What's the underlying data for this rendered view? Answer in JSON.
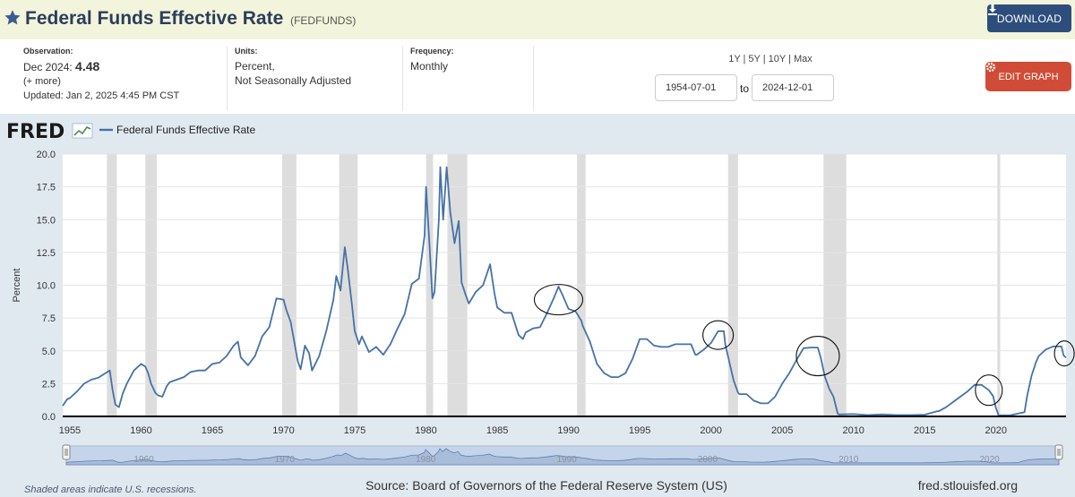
{
  "header": {
    "title": "Federal Funds Effective Rate",
    "series_code": "(FEDFUNDS)",
    "download_label": "DOWNLOAD"
  },
  "meta": {
    "observation_label": "Observation:",
    "observation_period": "Dec 2024:",
    "observation_value": "4.48",
    "more_link": "(+ more)",
    "updated": "Updated: Jan 2, 2025 4:45 PM CST",
    "units_label": "Units:",
    "units_line1": "Percent,",
    "units_line2": "Not Seasonally Adjusted",
    "frequency_label": "Frequency:",
    "frequency_value": "Monthly"
  },
  "controls": {
    "range_links": "1Y | 5Y | 10Y | Max",
    "start_date": "1954-07-01",
    "to_label": "to",
    "end_date": "2024-12-01",
    "edit_label": "EDIT GRAPH"
  },
  "footer": {
    "note": "Shaded areas indicate U.S. recessions.",
    "source": "Source: Board of Governors of the Federal Reserve System (US)",
    "site": "fred.stlouisfed.org"
  },
  "colors": {
    "line": "#4572a7",
    "recession": "#dddddd",
    "plot_bg": "#ffffff",
    "chart_bg": "#e1e9f0"
  },
  "chart_data": {
    "type": "line",
    "logo": "FRED",
    "series_name": "Federal Funds Effective Rate",
    "ylabel": "Percent",
    "xlim": [
      1954.5,
      2024.92
    ],
    "ylim": [
      0,
      20
    ],
    "yticks": [
      0,
      2.5,
      5,
      7.5,
      10,
      12.5,
      15,
      17.5,
      20
    ],
    "ytick_labels": [
      "0.0",
      "2.5",
      "5.0",
      "7.5",
      "10.0",
      "12.5",
      "15.0",
      "17.5",
      "20.0"
    ],
    "xticks": [
      1955,
      1960,
      1965,
      1970,
      1975,
      1980,
      1985,
      1990,
      1995,
      2000,
      2005,
      2010,
      2015,
      2020
    ],
    "navigator_labels": [
      1960,
      1970,
      1980,
      1990,
      2000,
      2010,
      2020
    ],
    "grid": "horizontal",
    "legend": "top-left",
    "recessions": [
      [
        1957.6,
        1958.3
      ],
      [
        1960.3,
        1961.1
      ],
      [
        1969.9,
        1970.9
      ],
      [
        1973.9,
        1975.2
      ],
      [
        1980.0,
        1980.5
      ],
      [
        1981.5,
        1982.9
      ],
      [
        1990.6,
        1991.2
      ],
      [
        2001.2,
        2001.9
      ],
      [
        2007.9,
        2009.5
      ],
      [
        2020.1,
        2020.3
      ]
    ],
    "x": [
      1954.5,
      1954.8,
      1955.0,
      1955.5,
      1956.0,
      1956.5,
      1957.0,
      1957.5,
      1957.8,
      1958.0,
      1958.2,
      1958.45,
      1958.7,
      1959.0,
      1959.5,
      1960.0,
      1960.3,
      1960.5,
      1960.7,
      1961.0,
      1961.2,
      1961.5,
      1961.8,
      1962.0,
      1962.5,
      1963.0,
      1963.5,
      1964.0,
      1964.5,
      1965.0,
      1965.5,
      1966.0,
      1966.5,
      1966.8,
      1967.0,
      1967.5,
      1968.0,
      1968.5,
      1969.0,
      1969.5,
      1970.0,
      1970.2,
      1970.5,
      1971.0,
      1971.2,
      1971.5,
      1971.8,
      1972.0,
      1972.5,
      1973.0,
      1973.5,
      1973.7,
      1974.0,
      1974.3,
      1974.5,
      1974.8,
      1975.0,
      1975.3,
      1975.5,
      1976.0,
      1976.5,
      1977.0,
      1977.5,
      1978.0,
      1978.5,
      1979.0,
      1979.5,
      1979.9,
      1980.0,
      1980.25,
      1980.45,
      1980.6,
      1980.9,
      1981.0,
      1981.2,
      1981.45,
      1981.7,
      1982.0,
      1982.3,
      1982.5,
      1982.8,
      1983.0,
      1983.5,
      1984.0,
      1984.5,
      1984.8,
      1985.0,
      1985.5,
      1986.0,
      1986.5,
      1986.8,
      1987.0,
      1987.5,
      1988.0,
      1988.5,
      1989.0,
      1989.3,
      1989.6,
      1990.0,
      1990.5,
      1990.9,
      1991.0,
      1991.5,
      1992.0,
      1992.5,
      1993.0,
      1993.5,
      1994.0,
      1994.5,
      1995.0,
      1995.5,
      1996.0,
      1996.5,
      1997.0,
      1997.5,
      1998.0,
      1998.6,
      1998.9,
      1999.0,
      1999.5,
      2000.0,
      2000.5,
      2000.9,
      2001.0,
      2001.3,
      2001.6,
      2001.9,
      2002.0,
      2002.5,
      2002.9,
      2003.0,
      2003.5,
      2004.0,
      2004.5,
      2005.0,
      2005.5,
      2006.0,
      2006.5,
      2007.0,
      2007.5,
      2007.7,
      2008.0,
      2008.3,
      2008.6,
      2008.9,
      2009.0,
      2010.0,
      2011.0,
      2012.0,
      2013.0,
      2014.0,
      2015.0,
      2015.9,
      2016.0,
      2016.5,
      2017.0,
      2017.5,
      2018.0,
      2018.5,
      2019.0,
      2019.5,
      2019.8,
      2020.0,
      2020.2,
      2020.3,
      2021.0,
      2022.0,
      2022.2,
      2022.5,
      2022.8,
      2023.0,
      2023.5,
      2024.0,
      2024.6,
      2024.75,
      2024.92
    ],
    "y": [
      0.8,
      1.3,
      1.4,
      1.9,
      2.5,
      2.8,
      2.95,
      3.3,
      3.5,
      2.0,
      0.9,
      0.7,
      1.7,
      2.5,
      3.5,
      4.0,
      3.8,
      3.3,
      2.5,
      1.8,
      1.6,
      1.5,
      2.3,
      2.6,
      2.8,
      3.0,
      3.4,
      3.5,
      3.5,
      4.0,
      4.1,
      4.6,
      5.4,
      5.7,
      4.5,
      3.9,
      4.6,
      6.1,
      6.8,
      9.0,
      8.9,
      8.1,
      7.2,
      4.2,
      3.6,
      5.4,
      4.8,
      3.5,
      4.6,
      6.5,
      8.9,
      10.7,
      9.6,
      12.9,
      11.3,
      8.5,
      6.5,
      5.5,
      6.1,
      4.9,
      5.3,
      4.7,
      5.5,
      6.7,
      7.8,
      10.1,
      10.5,
      13.8,
      17.5,
      13.0,
      9.0,
      9.5,
      15.0,
      19.0,
      15.0,
      19.0,
      15.6,
      13.2,
      14.9,
      10.2,
      9.2,
      8.6,
      9.5,
      10.0,
      11.6,
      9.4,
      8.3,
      7.9,
      7.9,
      6.2,
      5.9,
      6.4,
      6.7,
      6.8,
      7.9,
      9.1,
      9.9,
      9.2,
      8.2,
      8.0,
      7.3,
      6.9,
      5.7,
      4.0,
      3.3,
      3.0,
      3.0,
      3.3,
      4.4,
      5.9,
      5.9,
      5.4,
      5.3,
      5.3,
      5.5,
      5.5,
      5.5,
      4.7,
      4.7,
      5.1,
      5.6,
      6.5,
      6.5,
      5.5,
      4.1,
      2.7,
      1.8,
      1.7,
      1.7,
      1.3,
      1.2,
      1.0,
      1.0,
      1.5,
      2.5,
      3.3,
      4.3,
      5.2,
      5.25,
      5.25,
      4.5,
      3.0,
      2.1,
      1.5,
      0.2,
      0.15,
      0.18,
      0.1,
      0.15,
      0.1,
      0.1,
      0.13,
      0.4,
      0.4,
      0.7,
      1.1,
      1.5,
      1.9,
      2.4,
      2.4,
      2.0,
      1.55,
      0.65,
      0.05,
      0.08,
      0.08,
      0.33,
      1.6,
      3.1,
      4.1,
      4.6,
      5.1,
      5.33,
      5.33,
      4.65,
      4.48
    ]
  },
  "annotations": {
    "circles": [
      {
        "x": 1989.3,
        "y": 8.9
      },
      {
        "x": 2000.5,
        "y": 6.2
      },
      {
        "x": 2007.5,
        "y": 4.6
      },
      {
        "x": 2019.5,
        "y": 2.0
      },
      {
        "x": 2024.8,
        "y": 4.8
      }
    ]
  }
}
